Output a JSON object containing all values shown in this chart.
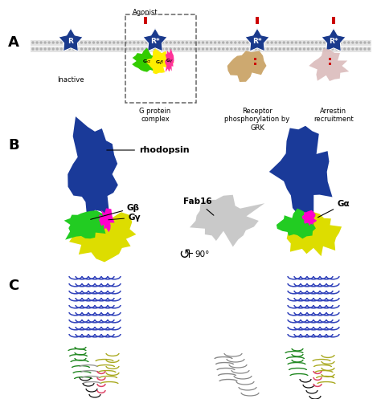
{
  "bg_color": "#ffffff",
  "panel_A_label": "A",
  "panel_B_label": "B",
  "panel_C_label": "C",
  "receptor_color": "#1a3a8c",
  "Galpha_color": "#33cc00",
  "Gbeta_color": "#ffee00",
  "Ggamma_color": "#ff3399",
  "agonist_color": "#cc0000",
  "GRK_color": "#c8a060",
  "arrestin_color": "#dbbcbc",
  "rhodopsin_color": "#1a3a99",
  "Gbeta_3d_color": "#22cc22",
  "Galpha_3d_color": "#dddd00",
  "Ggamma_3d_color": "#ff00cc",
  "Fab16_color": "#c0c0c0",
  "label_inactive": "Inactive",
  "label_gprotein": "G protein\ncomplex",
  "label_receptor_phos": "Receptor\nphosphorylation by\nGRK",
  "label_arrestin": "Arrestin\nrecruitment",
  "label_agonist": "Agonist",
  "label_rhodopsin": "rhodopsin",
  "label_gbeta": "Gβ",
  "label_ggamma": "Gγ",
  "label_galpha": "Gα",
  "label_fab16": "Fab16",
  "label_90deg": "90°",
  "R_label": "R",
  "Rstar_label": "R*",
  "mem_color1": "#d0d0d0",
  "mem_color2": "#e0e0e0",
  "pink_helix_color": "#dd4466",
  "black_color": "#111111",
  "gray_ribbon": "#888888",
  "green_ribbon": "#228822",
  "yellow_ribbon": "#aaaa22",
  "blue_ribbon": "#3344bb"
}
